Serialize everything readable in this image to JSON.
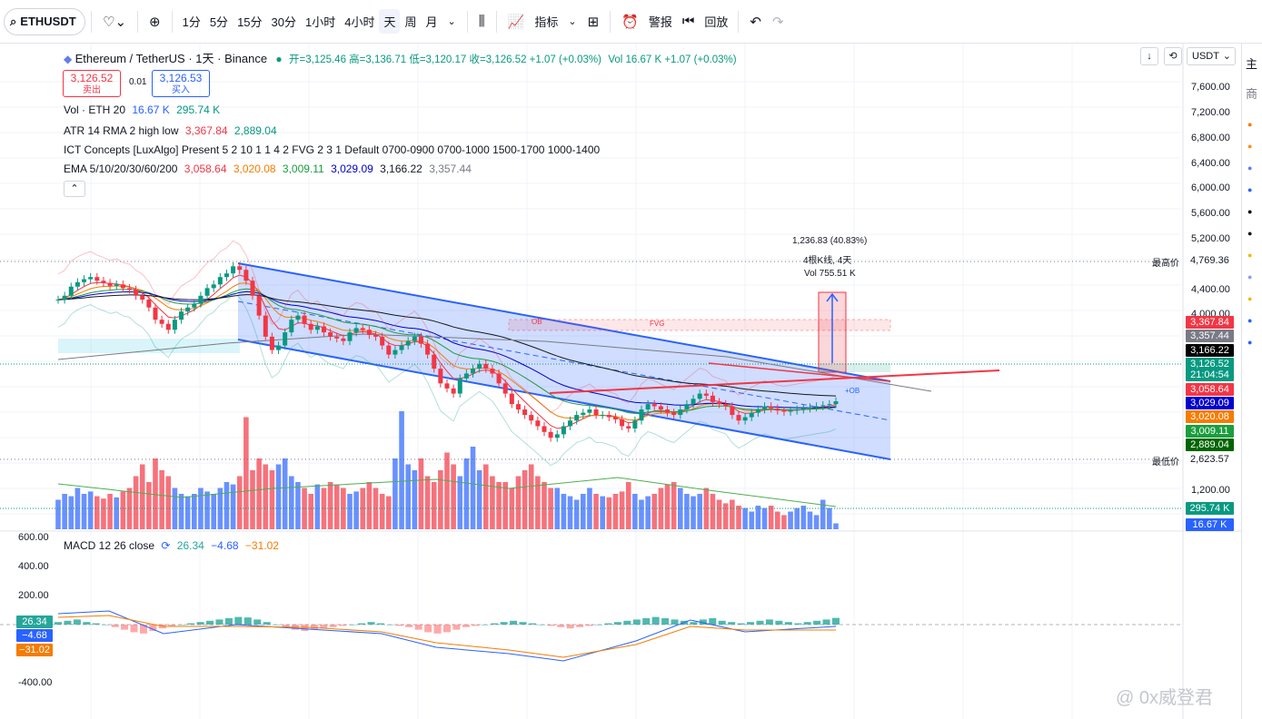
{
  "toolbar": {
    "symbol": "ETHUSDT",
    "intervals": [
      "1分",
      "5分",
      "15分",
      "30分",
      "1小时",
      "4小时",
      "天",
      "周",
      "月"
    ],
    "active_interval": "天",
    "indicators_label": "指标",
    "alerts_label": "警报",
    "replay_label": "回放"
  },
  "header": {
    "title": "Ethereum / TetherUS · 1天 · Binance",
    "ohlc": "开=3,125.46 高=3,136.71 低=3,120.17 收=3,126.52 +1.07 (+0.03%)",
    "vol": "Vol 16.67 K +1.07 (+0.03%)",
    "currency": "USDT",
    "sell_price": "3,126.52",
    "sell_label": "卖出",
    "spread": "0.01",
    "buy_price": "3,126.53",
    "buy_label": "买入"
  },
  "legends": {
    "vol_label": "Vol · ETH 20",
    "vol_v1": "16.67 K",
    "vol_v2": "295.74 K",
    "atr_label": "ATR 14 RMA 2 high low",
    "atr_v1": "3,367.84",
    "atr_v2": "2,889.04",
    "ict": "ICT Concepts [LuxAlgo] Present 5 2 10 1 1 4 2 FVG 2 3 1 Default 0700-0900 0700-1000 1500-1700 1000-1400",
    "ema_label": "EMA 5/10/20/30/60/200",
    "ema_values": [
      "3,058.64",
      "3,020.08",
      "3,009.11",
      "3,029.09",
      "3,166.22",
      "3,357.44"
    ],
    "macd_label": "MACD 12 26 close",
    "macd_values": [
      "26.34",
      "−4.68",
      "−31.02"
    ]
  },
  "measure": {
    "line1": "1,236.83 (40.83%)",
    "line2": "4根K线, 4天",
    "line3": "Vol 755.51 K"
  },
  "annotations": {
    "ob": "OB",
    "fvg": "FVG",
    "plus_ob": "+OB",
    "highest_label": "最高价",
    "highest_value": "4,769.36",
    "lowest_label": "最低价",
    "lowest_value": "2,623.57",
    "countdown": "21:04:54"
  },
  "price_tags": [
    {
      "value": "3,367.84",
      "color": "#f23645"
    },
    {
      "value": "3,357.44",
      "color": "#787b86"
    },
    {
      "value": "3,166.22",
      "color": "#000000"
    },
    {
      "value": "3,126.52",
      "color": "#089981"
    },
    {
      "value": "3,058.64",
      "color": "#f23645"
    },
    {
      "value": "3,029.09",
      "color": "#0000cc"
    },
    {
      "value": "3,020.08",
      "color": "#f57c00"
    },
    {
      "value": "3,009.11",
      "color": "#1b9e3e"
    },
    {
      "value": "2,889.04",
      "color": "#006400"
    }
  ],
  "volume_tags": [
    {
      "value": "295.74 K",
      "color": "#089981"
    },
    {
      "value": "16.67 K",
      "color": "#2962ff"
    }
  ],
  "macd_tags": [
    {
      "value": "26.34",
      "color": "#26a69a"
    },
    {
      "value": "−4.68",
      "color": "#2962ff"
    },
    {
      "value": "−31.02",
      "color": "#f57c00"
    }
  ],
  "watermark": "@ 0x威登君",
  "chart_data": {
    "type": "candlestick",
    "y_ticks": [
      "7,600.00",
      "7,200.00",
      "6,800.00",
      "6,400.00",
      "6,000.00",
      "5,600.00",
      "5,200.00",
      "4,400.00",
      "4,000.00",
      "1,200.00"
    ],
    "macd_ticks": [
      "600.00",
      "400.00",
      "200.00",
      "-400.00"
    ],
    "closes": [
      4250,
      4300,
      4420,
      4480,
      4520,
      4550,
      4500,
      4470,
      4430,
      4450,
      4400,
      4380,
      4300,
      4250,
      4150,
      4000,
      3950,
      3880,
      4000,
      4100,
      4150,
      4200,
      4300,
      4400,
      4450,
      4550,
      4600,
      4700,
      4650,
      4500,
      4300,
      4050,
      3800,
      3650,
      3700,
      3850,
      4000,
      4050,
      3950,
      3880,
      3920,
      3850,
      3800,
      3780,
      3750,
      3850,
      3900,
      3880,
      3820,
      3800,
      3700,
      3600,
      3650,
      3700,
      3750,
      3800,
      3720,
      3600,
      3450,
      3300,
      3250,
      3200,
      3350,
      3400,
      3450,
      3500,
      3450,
      3400,
      3300,
      3200,
      3100,
      3050,
      3000,
      2950,
      2900,
      2850,
      2800,
      2830,
      2900,
      2950,
      3000,
      3020,
      3050,
      3000,
      3000,
      2980,
      2960,
      2900,
      2880,
      2950,
      3050,
      3100,
      3080,
      3050,
      3020,
      3000,
      3050,
      3100,
      3150,
      3200,
      3180,
      3120,
      3100,
      3080,
      3000,
      2950,
      2980,
      3020,
      3050,
      3080,
      3060,
      3040,
      3030,
      3040,
      3050,
      3060,
      3070,
      3080,
      3090,
      3100,
      3126.52
    ],
    "volumes": [
      0.25,
      0.3,
      0.28,
      0.35,
      0.3,
      0.32,
      0.28,
      0.26,
      0.3,
      0.27,
      0.32,
      0.35,
      0.45,
      0.55,
      0.4,
      0.6,
      0.5,
      0.45,
      0.35,
      0.3,
      0.28,
      0.3,
      0.35,
      0.32,
      0.3,
      0.35,
      0.4,
      0.38,
      0.45,
      0.95,
      0.5,
      0.6,
      0.55,
      0.5,
      0.55,
      0.6,
      0.45,
      0.4,
      0.35,
      0.3,
      0.38,
      0.35,
      0.4,
      0.38,
      0.35,
      0.3,
      0.32,
      0.35,
      0.4,
      0.35,
      0.3,
      0.28,
      0.6,
      1.0,
      0.55,
      0.5,
      0.6,
      0.45,
      0.4,
      0.5,
      0.65,
      0.55,
      0.45,
      0.6,
      0.7,
      0.5,
      0.55,
      0.45,
      0.4,
      0.4,
      0.35,
      0.45,
      0.5,
      0.55,
      0.45,
      0.4,
      0.35,
      0.35,
      0.3,
      0.28,
      0.25,
      0.3,
      0.35,
      0.3,
      0.28,
      0.27,
      0.3,
      0.32,
      0.4,
      0.3,
      0.25,
      0.28,
      0.3,
      0.35,
      0.38,
      0.4,
      0.35,
      0.3,
      0.28,
      0.3,
      0.35,
      0.3,
      0.25,
      0.22,
      0.25,
      0.2,
      0.18,
      0.15,
      0.2,
      0.18,
      0.2,
      0.15,
      0.12,
      0.15,
      0.18,
      0.2,
      0.15,
      0.12,
      0.25,
      0.18,
      0.05
    ],
    "macd_hist": [
      10,
      15,
      20,
      10,
      5,
      0,
      -10,
      -20,
      -30,
      -35,
      -25,
      -15,
      -5,
      0,
      5,
      10,
      15,
      20,
      25,
      30,
      28,
      20,
      10,
      0,
      -10,
      -20,
      -25,
      -20,
      -15,
      -10,
      -5,
      0,
      5,
      10,
      5,
      0,
      -5,
      -10,
      -20,
      -30,
      -35,
      -30,
      -20,
      -10,
      -5,
      0,
      5,
      10,
      15,
      10,
      5,
      0,
      -5,
      -10,
      -15,
      -10,
      -5,
      0,
      5,
      10,
      15,
      20,
      25,
      30,
      25,
      20,
      15,
      10,
      20,
      25,
      15,
      10,
      5,
      10,
      15,
      20,
      15,
      10,
      5,
      10,
      15,
      20,
      26.34
    ],
    "highest": 4769.36,
    "lowest": 2623.57,
    "last_close": 3126.52
  }
}
